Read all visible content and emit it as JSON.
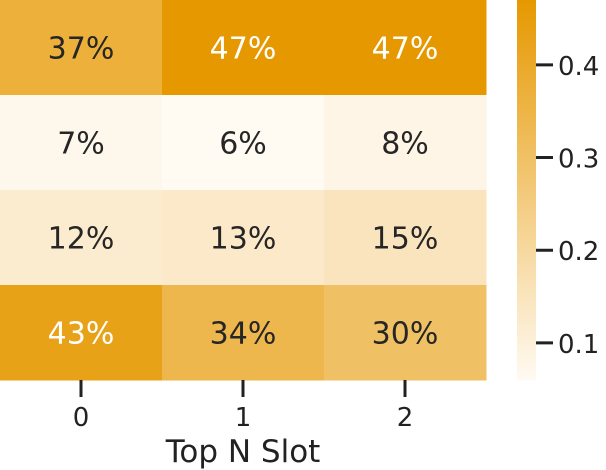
{
  "chart_data": {
    "type": "heatmap",
    "title": "",
    "xlabel": "Top N Slot",
    "ylabel": "",
    "x_categories": [
      "0",
      "1",
      "2"
    ],
    "y_categories": [],
    "values": [
      [
        0.37,
        0.47,
        0.47
      ],
      [
        0.07,
        0.06,
        0.08
      ],
      [
        0.12,
        0.13,
        0.15
      ],
      [
        0.43,
        0.34,
        0.3
      ]
    ],
    "labels": [
      [
        "37%",
        "47%",
        "47%"
      ],
      [
        "7%",
        "6%",
        "8%"
      ],
      [
        "12%",
        "13%",
        "15%"
      ],
      [
        "43%",
        "34%",
        "30%"
      ]
    ],
    "colorbar": {
      "min": 0.06,
      "max": 0.47,
      "ticks": [
        0.1,
        0.2,
        0.3,
        0.4
      ],
      "tick_labels": [
        "0.1",
        "0.2",
        "0.3",
        "0.4"
      ],
      "low_color": "#fffaf2",
      "high_color": "#e69800"
    },
    "text_colors": {
      "dark": "#262626",
      "light": "#ffffff"
    },
    "grid": false
  }
}
